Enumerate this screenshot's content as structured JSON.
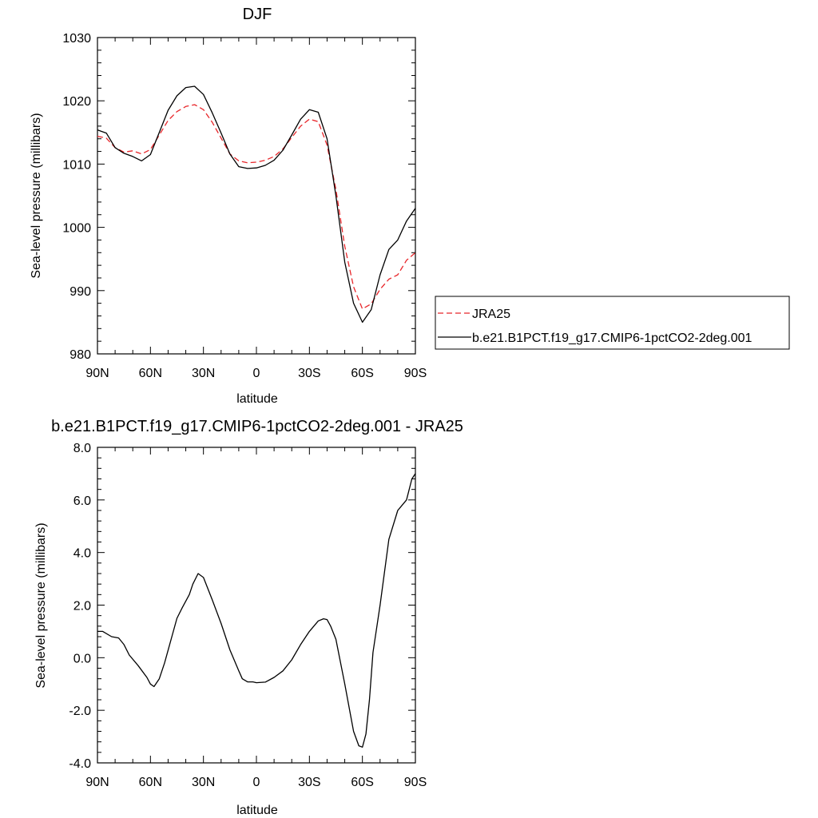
{
  "chart_data": [
    {
      "type": "line",
      "title": "DJF",
      "xlabel": "latitude",
      "ylabel": "Sea-level pressure (millibars)",
      "xlim": [
        90,
        -90
      ],
      "ylim": [
        980,
        1030
      ],
      "x_ticks": [
        {
          "value": 90,
          "label": "90N"
        },
        {
          "value": 60,
          "label": "60N"
        },
        {
          "value": 30,
          "label": "30N"
        },
        {
          "value": 0,
          "label": "0"
        },
        {
          "value": -30,
          "label": "30S"
        },
        {
          "value": -60,
          "label": "60S"
        },
        {
          "value": -90,
          "label": "90S"
        }
      ],
      "y_ticks": [
        {
          "value": 980,
          "label": "980"
        },
        {
          "value": 990,
          "label": "990"
        },
        {
          "value": 1000,
          "label": "1000"
        },
        {
          "value": 1010,
          "label": "1010"
        },
        {
          "value": 1020,
          "label": "1020"
        },
        {
          "value": 1030,
          "label": "1030"
        }
      ],
      "legend": {
        "position": "right"
      },
      "series": [
        {
          "name": "JRA25",
          "color": "#e8262a",
          "dashed": true,
          "x": [
            90,
            85,
            80,
            75,
            70,
            65,
            60,
            55,
            50,
            45,
            40,
            35,
            30,
            25,
            20,
            15,
            10,
            5,
            0,
            -5,
            -10,
            -15,
            -20,
            -25,
            -30,
            -35,
            -40,
            -45,
            -50,
            -55,
            -60,
            -65,
            -70,
            -75,
            -80,
            -85,
            -90
          ],
          "y": [
            1014.4,
            1014.1,
            1012.6,
            1011.9,
            1012.1,
            1011.6,
            1012.3,
            1014.6,
            1016.9,
            1018.3,
            1019.1,
            1019.4,
            1018.6,
            1016.6,
            1014.1,
            1011.6,
            1010.5,
            1010.2,
            1010.3,
            1010.6,
            1011.2,
            1012.4,
            1014.2,
            1016.0,
            1017.1,
            1016.7,
            1013.0,
            1006.0,
            997.0,
            990.6,
            987.1,
            987.9,
            990.2,
            991.8,
            992.5,
            994.8,
            996.0
          ]
        },
        {
          "name": "b.e21.B1PCT.f19_g17.CMIP6-1pctCO2-2deg.001",
          "color": "#000000",
          "dashed": false,
          "x": [
            90,
            85,
            80,
            75,
            70,
            65,
            60,
            55,
            50,
            45,
            40,
            35,
            30,
            25,
            20,
            15,
            10,
            5,
            0,
            -5,
            -10,
            -15,
            -20,
            -25,
            -30,
            -35,
            -40,
            -45,
            -50,
            -55,
            -60,
            -65,
            -70,
            -75,
            -80,
            -85,
            -90
          ],
          "y": [
            1015.4,
            1014.9,
            1012.6,
            1011.7,
            1011.2,
            1010.5,
            1011.5,
            1015.0,
            1018.5,
            1020.8,
            1022.1,
            1022.3,
            1021.0,
            1018.1,
            1014.9,
            1011.6,
            1009.6,
            1009.3,
            1009.4,
            1009.8,
            1010.6,
            1012.2,
            1014.6,
            1017.1,
            1018.6,
            1018.2,
            1014.0,
            1005.0,
            994.5,
            988.0,
            985.0,
            987.0,
            992.5,
            996.5,
            998.0,
            1001.0,
            1003.0
          ]
        }
      ]
    },
    {
      "type": "line",
      "title": "b.e21.B1PCT.f19_g17.CMIP6-1pctCO2-2deg.001 - JRA25",
      "xlabel": "latitude",
      "ylabel": "Sea-level pressure (millibars)",
      "xlim": [
        90,
        -90
      ],
      "ylim": [
        -4.0,
        8.0
      ],
      "x_ticks": [
        {
          "value": 90,
          "label": "90N"
        },
        {
          "value": 60,
          "label": "60N"
        },
        {
          "value": 30,
          "label": "30N"
        },
        {
          "value": 0,
          "label": "0"
        },
        {
          "value": -30,
          "label": "30S"
        },
        {
          "value": -60,
          "label": "60S"
        },
        {
          "value": -90,
          "label": "90S"
        }
      ],
      "y_ticks": [
        {
          "value": -4.0,
          "label": "-4.0"
        },
        {
          "value": -2.0,
          "label": "-2.0"
        },
        {
          "value": 0.0,
          "label": "0.0"
        },
        {
          "value": 2.0,
          "label": "2.0"
        },
        {
          "value": 4.0,
          "label": "4.0"
        },
        {
          "value": 6.0,
          "label": "6.0"
        },
        {
          "value": 8.0,
          "label": "8.0"
        }
      ],
      "series": [
        {
          "name": "",
          "color": "#000000",
          "dashed": false,
          "x": [
            90,
            87,
            82,
            78,
            75,
            72,
            67,
            62,
            60,
            58,
            55,
            52,
            45,
            42,
            38,
            36,
            33,
            30,
            25,
            20,
            15,
            10,
            8,
            5,
            2,
            0,
            -5,
            -10,
            -15,
            -20,
            -25,
            -30,
            -35,
            -38,
            -40,
            -42,
            -45,
            -50,
            -55,
            -58,
            -60,
            -62,
            -64,
            -66,
            -70,
            -75,
            -80,
            -85,
            -88,
            -90
          ],
          "y": [
            1.0,
            1.0,
            0.8,
            0.75,
            0.5,
            0.1,
            -0.3,
            -0.75,
            -1.0,
            -1.1,
            -0.8,
            -0.2,
            1.5,
            1.9,
            2.4,
            2.8,
            3.2,
            3.05,
            2.2,
            1.3,
            0.3,
            -0.5,
            -0.8,
            -0.92,
            -0.92,
            -0.95,
            -0.93,
            -0.75,
            -0.5,
            -0.08,
            0.5,
            1.0,
            1.4,
            1.48,
            1.45,
            1.2,
            0.7,
            -1.0,
            -2.8,
            -3.35,
            -3.4,
            -2.9,
            -1.6,
            0.2,
            2.0,
            4.5,
            5.6,
            6.0,
            6.8,
            7.0
          ]
        }
      ]
    }
  ]
}
